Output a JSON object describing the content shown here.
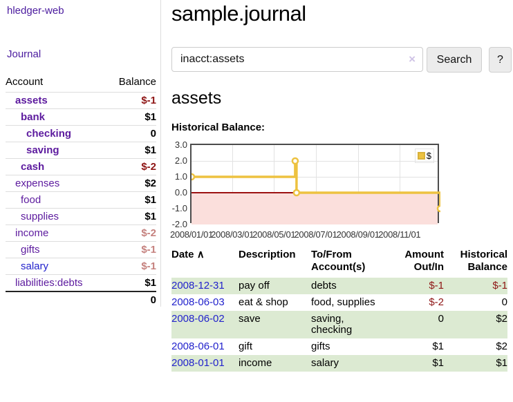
{
  "app": {
    "brand": "hledger-web",
    "nav_journal": "Journal"
  },
  "sidebar": {
    "headers": {
      "account": "Account",
      "balance": "Balance"
    },
    "accounts": [
      {
        "name": "assets",
        "balance": "$-1"
      },
      {
        "name": "bank",
        "balance": "$1"
      },
      {
        "name": "checking",
        "balance": "0"
      },
      {
        "name": "saving",
        "balance": "$1"
      },
      {
        "name": "cash",
        "balance": "$-2"
      },
      {
        "name": "expenses",
        "balance": "$2"
      },
      {
        "name": "food",
        "balance": "$1"
      },
      {
        "name": "supplies",
        "balance": "$1"
      },
      {
        "name": "income",
        "balance": "$-2"
      },
      {
        "name": "gifts",
        "balance": "$-1"
      },
      {
        "name": "salary",
        "balance": "$-1"
      },
      {
        "name": "liabilities:debts",
        "balance": "$1"
      }
    ],
    "total": "0"
  },
  "header": {
    "title": "sample.journal"
  },
  "search": {
    "value": "inacct:assets",
    "button_label": "Search",
    "help_label": "?"
  },
  "account_view": {
    "heading": "assets",
    "chart_label": "Historical Balance:"
  },
  "icons": {
    "clear": "×",
    "sort_asc": "∧"
  },
  "chart_data": {
    "type": "line",
    "step": true,
    "title": "Historical Balance:",
    "series": [
      {
        "name": "$",
        "color": "#EDC240",
        "points": [
          [
            "2008-01-01",
            1
          ],
          [
            "2008-06-01",
            2
          ],
          [
            "2008-06-03",
            0
          ],
          [
            "2008-12-31",
            -1
          ]
        ]
      }
    ],
    "x_range": [
      "2008-01-01",
      "2008-12-31"
    ],
    "y_range": [
      -2,
      3
    ],
    "y_ticks": [
      3.0,
      2.0,
      1.0,
      0.0,
      -1.0,
      -2.0
    ],
    "x_ticks": [
      "2008/01/01",
      "2008/03/01",
      "2008/05/01",
      "2008/07/01",
      "2008/09/01",
      "2008/11/01"
    ],
    "negative_region_below": 0,
    "legend_position": "top-right",
    "grid": true
  },
  "register": {
    "headers": [
      {
        "label": "Date"
      },
      {
        "label": "Description"
      },
      {
        "label": "To/From Account(s)"
      },
      {
        "label": "Amount Out/In"
      },
      {
        "label": "Historical Balance"
      }
    ],
    "rows": [
      {
        "date": "2008-12-31",
        "description": "pay off",
        "accounts": "debts",
        "amount": "$-1",
        "balance": "$-1"
      },
      {
        "date": "2008-06-03",
        "description": "eat & shop",
        "accounts": "food, supplies",
        "amount": "$-2",
        "balance": "0"
      },
      {
        "date": "2008-06-02",
        "description": "save",
        "accounts": "saving, checking",
        "amount": "0",
        "balance": "$2"
      },
      {
        "date": "2008-06-01",
        "description": "gift",
        "accounts": "gifts",
        "amount": "$1",
        "balance": "$2"
      },
      {
        "date": "2008-01-01",
        "description": "income",
        "accounts": "salary",
        "amount": "$1",
        "balance": "$1"
      }
    ]
  },
  "colors": {
    "link_purple": "#5c1a9e",
    "link_blue": "#2222cc",
    "negative_strong": "#8e1515",
    "negative_muted": "#c5817e",
    "row_green": "#dcead2",
    "series_yellow": "#EDC240",
    "negative_region_pink": "#fbdfdc",
    "zero_line_red": "#9c1212"
  }
}
